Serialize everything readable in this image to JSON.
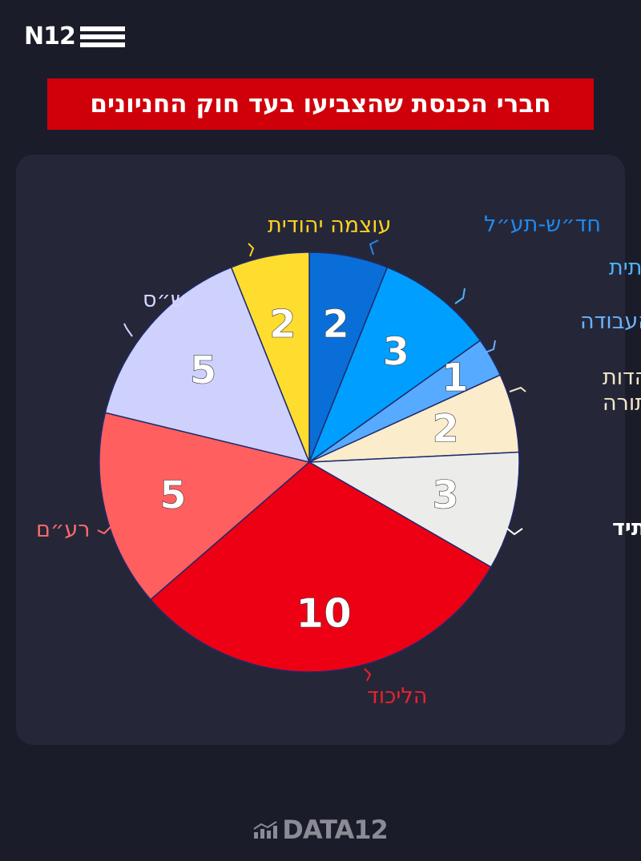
{
  "brand": {
    "logo": "N12",
    "footer": "DATA12"
  },
  "title": "חברי הכנסת שהצביעו בעד חוק החניונים",
  "chart_data": {
    "type": "pie",
    "title": "חברי הכנסת שהצביעו בעד חוק החניונים",
    "slices": [
      {
        "label": "חד״ש-תע״ל",
        "value": 2,
        "color": "#0a6ed8",
        "label_color": "#1e8af0"
      },
      {
        "label": "הציונות הדתית",
        "value": 3,
        "color": "#009fff",
        "label_color": "#4cb4ff"
      },
      {
        "label": "העבודה",
        "value": 1,
        "color": "#56aaff",
        "label_color": "#6ab3ff"
      },
      {
        "label": "יהדות\nהתורה",
        "value": 2,
        "color": "#fbeccb",
        "label_color": "#f3e6c8"
      },
      {
        "label": "יש עתיד",
        "value": 3,
        "color": "#ececea",
        "label_color": "#ffffff"
      },
      {
        "label": "הליכוד",
        "value": 10,
        "color": "#ee0014",
        "label_color": "#e8222b"
      },
      {
        "label": "רע״ם",
        "value": 5,
        "color": "#ff5f5f",
        "label_color": "#ff6a6a"
      },
      {
        "label": "ש״ס",
        "value": 5,
        "color": "#cdd1fc",
        "label_color": "#d4d7ff"
      },
      {
        "label": "עוצמה יהודית",
        "value": 2,
        "color": "#ffdd2f",
        "label_color": "#ffd21f"
      }
    ]
  }
}
